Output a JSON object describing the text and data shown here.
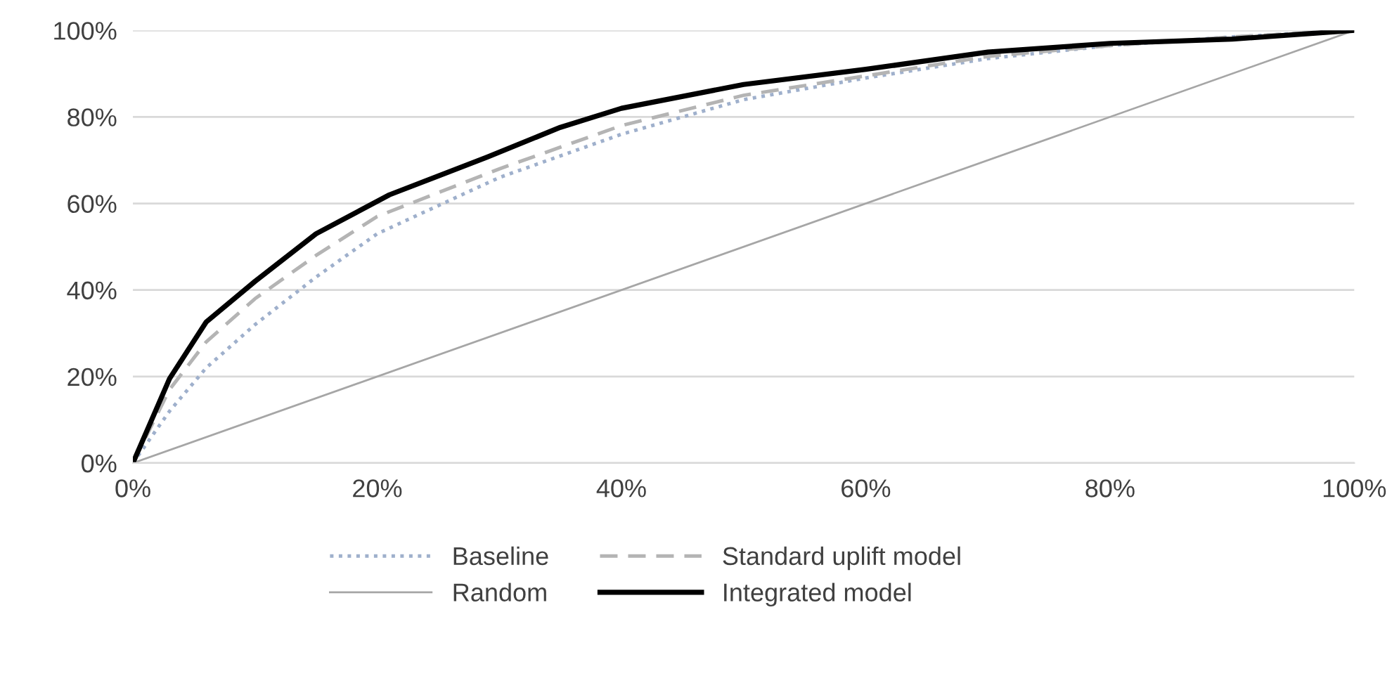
{
  "chart_data": {
    "type": "line",
    "xlim": [
      0,
      100
    ],
    "ylim": [
      0,
      100
    ],
    "xticks": [
      {
        "value": 0,
        "label": "0%"
      },
      {
        "value": 20,
        "label": "20%"
      },
      {
        "value": 40,
        "label": "40%"
      },
      {
        "value": 60,
        "label": "60%"
      },
      {
        "value": 80,
        "label": "80%"
      },
      {
        "value": 100,
        "label": "100%"
      }
    ],
    "yticks": [
      {
        "value": 0,
        "label": "0%"
      },
      {
        "value": 20,
        "label": "20%"
      },
      {
        "value": 40,
        "label": "40%"
      },
      {
        "value": 60,
        "label": "60%"
      },
      {
        "value": 80,
        "label": "80%"
      },
      {
        "value": 100,
        "label": "100%"
      }
    ],
    "grid": "y",
    "legend": "bottom",
    "marker": "none",
    "series": [
      {
        "name": "Baseline",
        "color": "#9fb0cc",
        "line_style": "dotted",
        "x": [
          0,
          3,
          6,
          10,
          15,
          20,
          30,
          40,
          50,
          60,
          70,
          80,
          90,
          100
        ],
        "values": [
          0,
          12,
          22,
          32,
          43,
          53,
          66,
          76,
          84,
          89,
          93.5,
          96.5,
          98.5,
          100
        ]
      },
      {
        "name": "Random",
        "color": "#a6a6a6",
        "line_style": "solid",
        "x": [
          0,
          100
        ],
        "values": [
          0,
          100
        ]
      },
      {
        "name": "Standard uplift model",
        "color": "#b4b4b4",
        "line_style": "dashed",
        "x": [
          0,
          3,
          6,
          10,
          15,
          20,
          30,
          40,
          50,
          60,
          70,
          80,
          90,
          100
        ],
        "values": [
          0,
          17,
          28,
          38,
          48,
          57,
          68,
          78,
          85,
          89.5,
          94,
          96.5,
          98.5,
          100
        ]
      },
      {
        "name": "Integrated model",
        "color": "#000000",
        "line_style": "solid",
        "x": [
          0,
          3,
          6,
          10,
          15,
          21,
          29,
          35,
          40,
          50,
          60,
          70,
          80,
          90,
          100
        ],
        "values": [
          0,
          19.5,
          32.6,
          42,
          53,
          62,
          70.7,
          77.6,
          82,
          87.5,
          91,
          95,
          97,
          98,
          100
        ]
      }
    ]
  }
}
